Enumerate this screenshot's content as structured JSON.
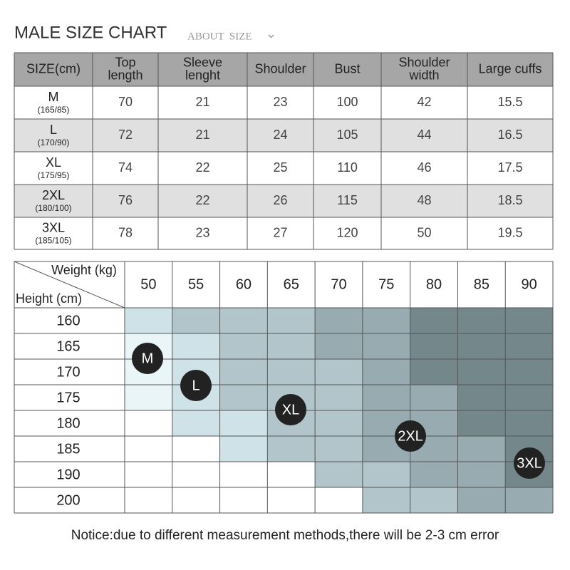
{
  "header": {
    "title": "MALE SIZE CHART",
    "link": "ABOUT  SIZE"
  },
  "size_table": {
    "columns": [
      [
        "SIZE(cm)"
      ],
      [
        "Top",
        "length"
      ],
      [
        "Sleeve",
        "lenght"
      ],
      [
        "Shoulder"
      ],
      [
        "Bust"
      ],
      [
        "Shoulder",
        "width"
      ],
      [
        "Large cuffs"
      ]
    ],
    "rows": [
      {
        "size": "M",
        "range": "(165/85)",
        "values": [
          70,
          21,
          23,
          100,
          42,
          15.5
        ]
      },
      {
        "size": "L",
        "range": "(170/90)",
        "values": [
          72,
          21,
          24,
          105,
          44,
          16.5
        ]
      },
      {
        "size": "XL",
        "range": "(175/95)",
        "values": [
          74,
          22,
          25,
          110,
          46,
          17.5
        ]
      },
      {
        "size": "2XL",
        "range": "(180/100)",
        "values": [
          76,
          22,
          26,
          115,
          48,
          18.5
        ]
      },
      {
        "size": "3XL",
        "range": "(185/105)",
        "values": [
          78,
          23,
          27,
          120,
          50,
          19.5
        ]
      }
    ]
  },
  "weight_grid": {
    "corner_weight": "Weight (kg)",
    "corner_height": "Height (cm)",
    "weights": [
      50,
      55,
      60,
      65,
      70,
      75,
      80,
      85,
      90
    ],
    "heights": [
      160,
      165,
      170,
      175,
      180,
      185,
      190,
      200
    ],
    "cells": [
      [
        "#cfe2e8",
        "#b1c5cb",
        "#b1c5cb",
        "#b1c5cb",
        "#98abb0",
        "#98abb0",
        "#74878b",
        "#74878b",
        "#74878b"
      ],
      [
        "#eaf5f7",
        "#cfe2e8",
        "#b1c5cb",
        "#b1c5cb",
        "#98abb0",
        "#98abb0",
        "#74878b",
        "#74878b",
        "#74878b"
      ],
      [
        "#eaf5f7",
        "#cfe2e8",
        "#b1c5cb",
        "#b1c5cb",
        "#b1c5cb",
        "#98abb0",
        "#74878b",
        "#74878b",
        "#74878b"
      ],
      [
        "#eaf5f7",
        "#cfe2e8",
        "#b1c5cb",
        "#b1c5cb",
        "#b1c5cb",
        "#98abb0",
        "#98abb0",
        "#74878b",
        "#74878b"
      ],
      [
        "#ffffff",
        "#cfe2e8",
        "#cfe2e8",
        "#b1c5cb",
        "#b1c5cb",
        "#98abb0",
        "#98abb0",
        "#74878b",
        "#74878b"
      ],
      [
        "#ffffff",
        "#ffffff",
        "#cfe2e8",
        "#b1c5cb",
        "#b1c5cb",
        "#98abb0",
        "#98abb0",
        "#98abb0",
        "#74878b"
      ],
      [
        "#ffffff",
        "#ffffff",
        "#ffffff",
        "#ffffff",
        "#b1c5cb",
        "#b1c5cb",
        "#98abb0",
        "#98abb0",
        "#74878b"
      ],
      [
        "#ffffff",
        "#ffffff",
        "#ffffff",
        "#ffffff",
        "#ffffff",
        "#b1c5cb",
        "#b1c5cb",
        "#98abb0",
        "#98abb0"
      ]
    ],
    "badges": [
      "M",
      "L",
      "XL",
      "2XL",
      "3XL"
    ]
  },
  "notice": "Notice:due to different measurement methods,there will be 2-3 cm error"
}
